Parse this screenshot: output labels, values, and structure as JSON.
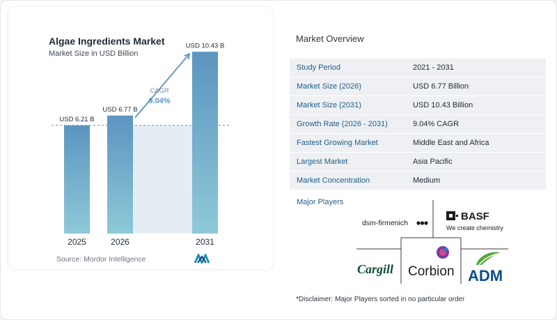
{
  "chart_data": {
    "type": "bar",
    "title": "Algae Ingredients Market",
    "subtitle": "Market Size in USD Billion",
    "categories": [
      "2025",
      "2026",
      "2031"
    ],
    "values": [
      6.21,
      6.77,
      10.43
    ],
    "data_labels": [
      "USD 6.21 B",
      "USD 6.77 B",
      "USD 10.43 B"
    ],
    "cagr_label": "CAGR",
    "cagr_value": "9.04%",
    "ylim": [
      0,
      11
    ],
    "bar_color_top": "#5b95c0",
    "bar_color_bottom": "#8ec9d8",
    "source": "Source:  Mordor Intelligence"
  },
  "overview": {
    "title": "Market Overview",
    "rows": [
      {
        "label": "Study Period",
        "value": "2021 - 2031"
      },
      {
        "label": "Market Size (2026)",
        "value": "USD 6.77 Billion"
      },
      {
        "label": "Market Size (2031)",
        "value": "USD 10.43 Billion"
      },
      {
        "label": "Growth Rate (2026 - 2031)",
        "value": "9.04% CAGR"
      },
      {
        "label": "Fastest Growing Market",
        "value": "Middle East and Africa"
      },
      {
        "label": "Largest Market",
        "value": "Asia Pacific"
      },
      {
        "label": "Market Concentration",
        "value": "Medium"
      }
    ],
    "players_title": "Major Players",
    "players": {
      "dsm": "dsm-firmenich",
      "basf": "BASF",
      "basf_tagline": "We create chemistry",
      "cargill": "Cargill",
      "corbion": "Corbion",
      "adm": "ADM"
    },
    "disclaimer": "*Disclaimer: Major Players sorted in no particular order"
  },
  "colors": {
    "accent_blue": "#1e5d8a",
    "arrow": "#5b95c0",
    "adm_green": "#5aa83a"
  }
}
